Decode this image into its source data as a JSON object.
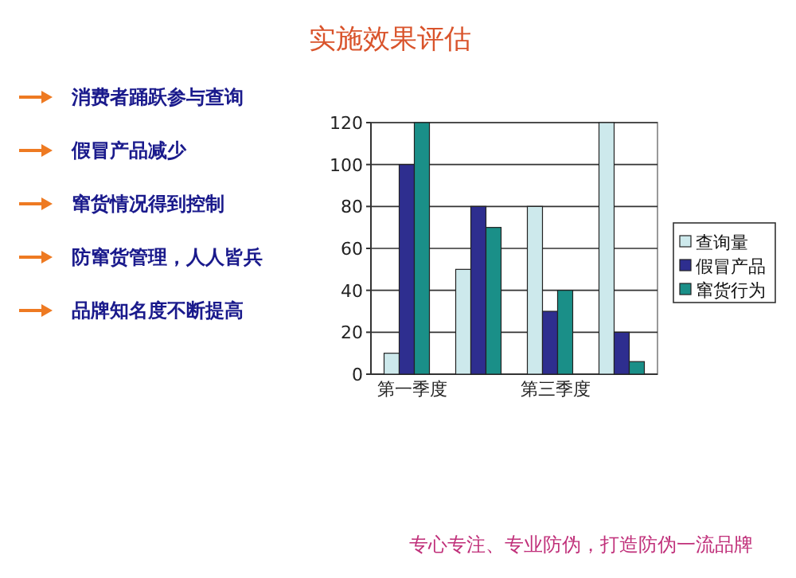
{
  "chart_data": {
    "type": "bar",
    "title": "实施效果评估",
    "annotations": [
      "消费者踊跃参与查询",
      "假冒产品减少",
      "窜货情况得到控制",
      "防窜货管理，人人皆兵",
      "品牌知名度不断提高",
      "专心专注、专业防伪，打造防伪一流品牌"
    ],
    "categories": [
      "第一季度",
      null,
      "第三季度",
      null
    ],
    "series": [
      {
        "name": "查询量",
        "color": "#cde9ec",
        "values": [
          10,
          50,
          80,
          120
        ]
      },
      {
        "name": "假冒产品",
        "color": "#2e2e8f",
        "values": [
          100,
          80,
          30,
          20
        ]
      },
      {
        "name": "窜货行为",
        "color": "#1a8f88",
        "values": [
          120,
          70,
          40,
          6
        ]
      }
    ],
    "ylim": [
      0,
      120
    ],
    "yticks": [
      0,
      20,
      40,
      60,
      80,
      100,
      120
    ],
    "grid": "y",
    "legend": "right"
  }
}
